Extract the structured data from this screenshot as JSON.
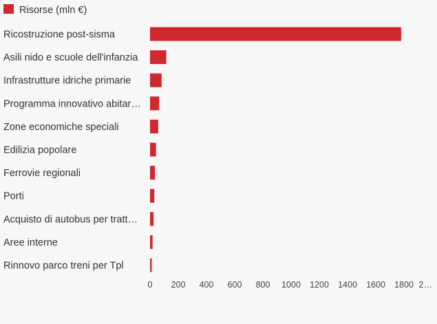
{
  "chart_data": {
    "type": "bar",
    "orientation": "horizontal",
    "legend": {
      "position": "top-left",
      "entries": [
        {
          "name": "Risorse (mln €)",
          "color": "#d0282f"
        }
      ]
    },
    "categories": [
      "Ricostruzione post-sisma",
      "Asili nido e scuole dell'infanzia",
      "Infrastrutture idriche primarie",
      "Programma innovativo abitar…",
      "Zone economiche speciali",
      "Edilizia popolare",
      "Ferrovie regionali",
      "Porti",
      "Acquisto di autobus per tratt…",
      "Aree interne",
      "Rinnovo parco treni per Tpl"
    ],
    "series": [
      {
        "name": "Risorse (mln €)",
        "color": "#d0282f",
        "values": [
          1780,
          115,
          82,
          65,
          58,
          42,
          35,
          30,
          25,
          18,
          12
        ]
      }
    ],
    "xlim": [
      0,
      2000
    ],
    "xticks": [
      "0",
      "200",
      "400",
      "600",
      "800",
      "1000",
      "1200",
      "1400",
      "1600",
      "1800",
      "2…"
    ],
    "xtick_values": [
      0,
      200,
      400,
      600,
      800,
      1000,
      1200,
      1400,
      1600,
      1800,
      2000
    ],
    "grid": false
  }
}
